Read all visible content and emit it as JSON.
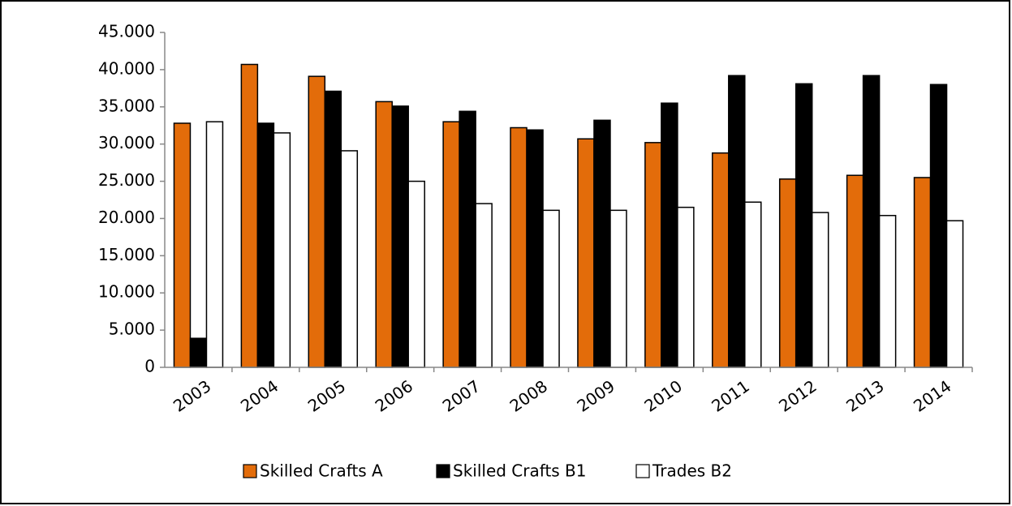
{
  "chart_data": {
    "type": "bar",
    "categories": [
      "2003",
      "2004",
      "2005",
      "2006",
      "2007",
      "2008",
      "2009",
      "2010",
      "2011",
      "2012",
      "2013",
      "2014"
    ],
    "series": [
      {
        "name": "Skilled Crafts A",
        "color": "#e36c0a",
        "values": [
          32800,
          40700,
          39100,
          35700,
          33000,
          32200,
          30700,
          30200,
          28800,
          25300,
          25800,
          25500
        ]
      },
      {
        "name": "Skilled Crafts B1",
        "color": "#000000",
        "values": [
          3900,
          32800,
          37100,
          35100,
          34400,
          31900,
          33200,
          35500,
          39200,
          38100,
          39200,
          38000
        ]
      },
      {
        "name": "Trades B2",
        "color": "#ffffff",
        "values": [
          33000,
          31500,
          29100,
          25000,
          22000,
          21100,
          21100,
          21500,
          22200,
          20800,
          20400,
          19700
        ]
      }
    ],
    "ylim": [
      0,
      45000
    ],
    "yticks": [
      0,
      {
        "value": 5000,
        "label": "5.000"
      },
      {
        "value": 10000,
        "label": "10.000"
      },
      {
        "value": 15000,
        "label": "15.000"
      },
      {
        "value": 20000,
        "label": "20.000"
      },
      {
        "value": 25000,
        "label": "25.000"
      },
      {
        "value": 30000,
        "label": "30.000"
      },
      {
        "value": 35000,
        "label": "35.000"
      },
      {
        "value": 40000,
        "label": "40.000"
      },
      {
        "value": 45000,
        "label": "45.000"
      }
    ],
    "grid": false,
    "legend": "bottom"
  }
}
